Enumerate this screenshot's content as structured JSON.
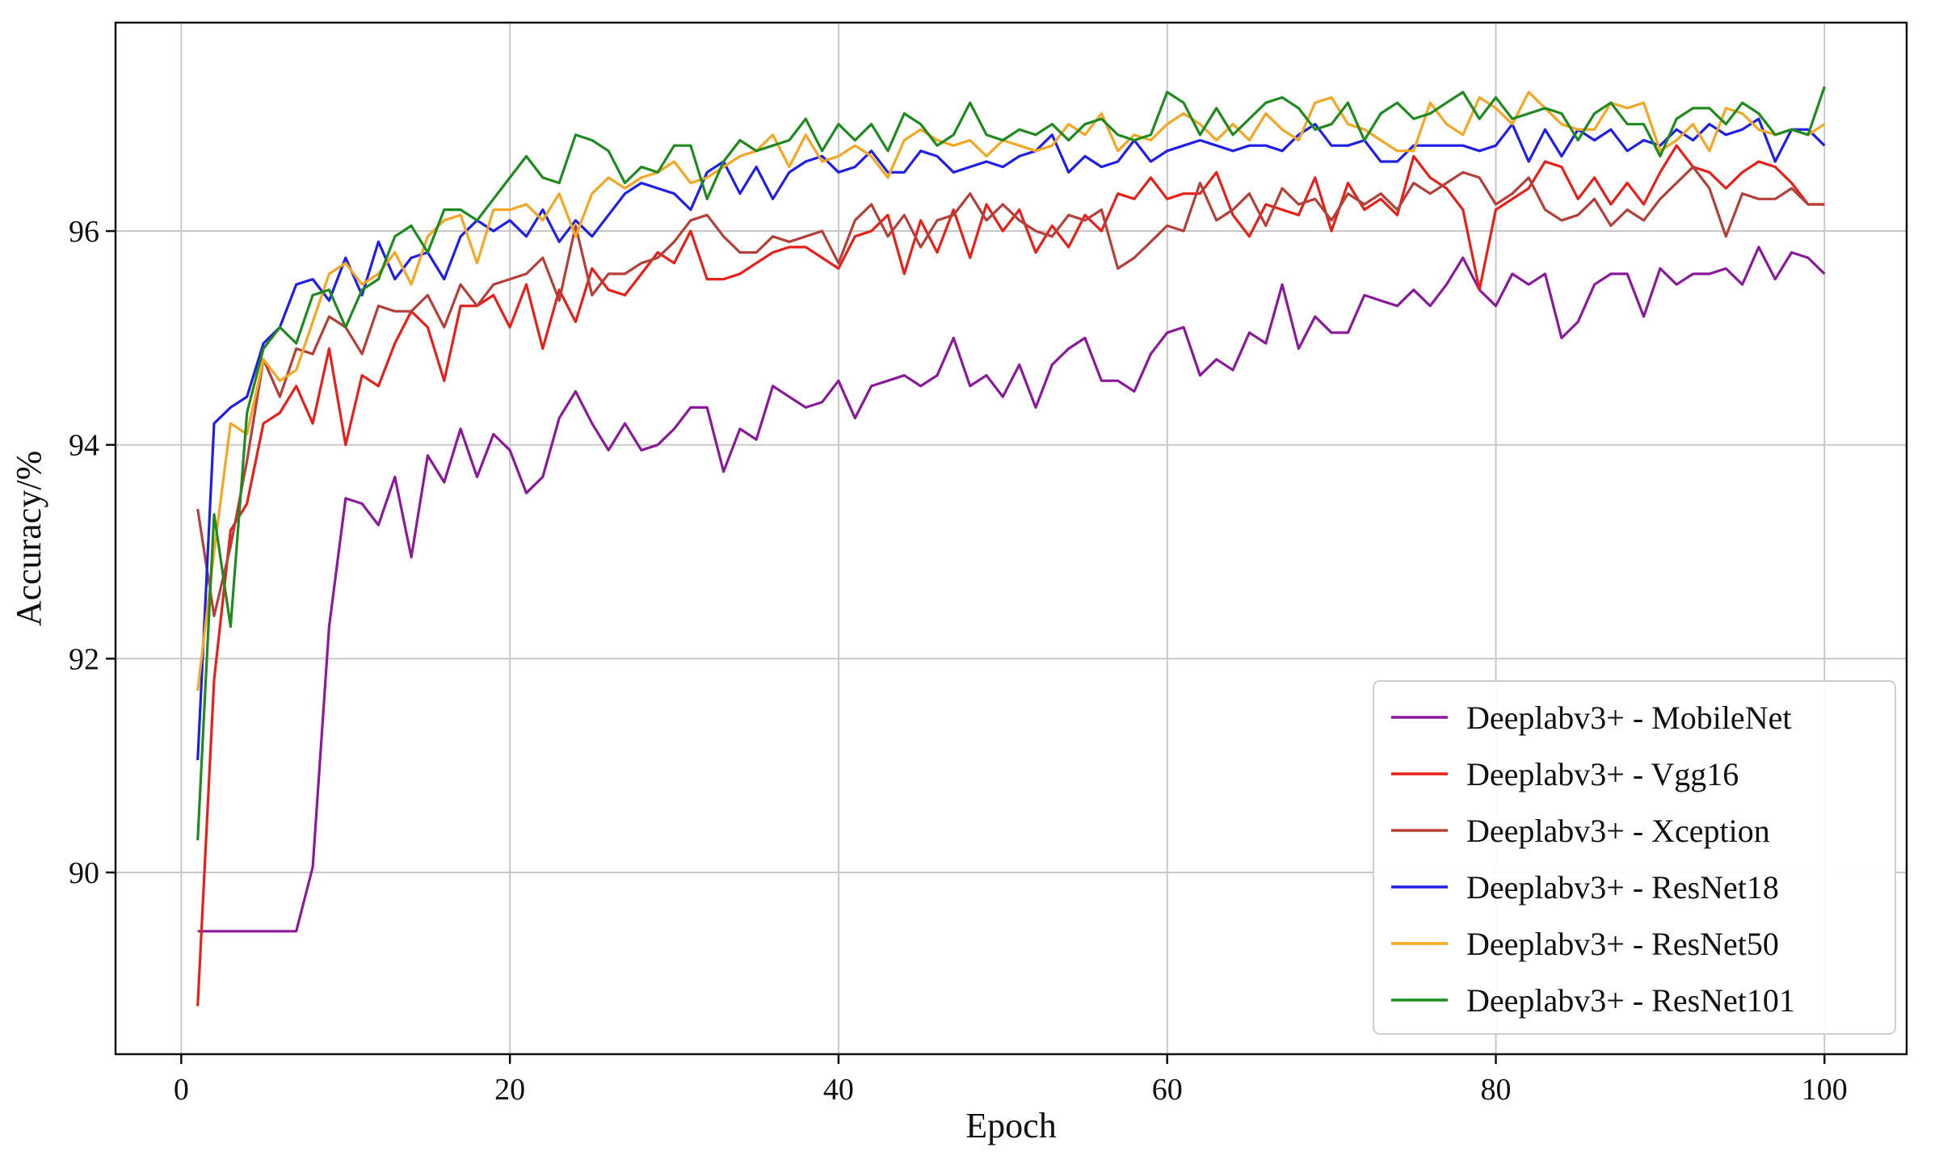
{
  "chart_data": {
    "type": "line",
    "title": "",
    "xlabel": "Epoch",
    "ylabel": "Accuracy/%",
    "xlim": [
      -4,
      105
    ],
    "ylim": [
      88.3,
      97.95
    ],
    "xticks": [
      0,
      20,
      40,
      60,
      80,
      100
    ],
    "yticks": [
      90,
      92,
      94,
      96
    ],
    "grid": true,
    "legend_position": "lower-right",
    "x": [
      1,
      2,
      3,
      4,
      5,
      6,
      7,
      8,
      9,
      10,
      11,
      12,
      13,
      14,
      15,
      16,
      17,
      18,
      19,
      20,
      21,
      22,
      23,
      24,
      25,
      26,
      27,
      28,
      29,
      30,
      31,
      32,
      33,
      34,
      35,
      36,
      37,
      38,
      39,
      40,
      41,
      42,
      43,
      44,
      45,
      46,
      47,
      48,
      49,
      50,
      51,
      52,
      53,
      54,
      55,
      56,
      57,
      58,
      59,
      60,
      61,
      62,
      63,
      64,
      65,
      66,
      67,
      68,
      69,
      70,
      71,
      72,
      73,
      74,
      75,
      76,
      77,
      78,
      79,
      80,
      81,
      82,
      83,
      84,
      85,
      86,
      87,
      88,
      89,
      90,
      91,
      92,
      93,
      94,
      95,
      96,
      97,
      98,
      99,
      100
    ],
    "series": [
      {
        "name": "Deeplabv3+ - MobileNet",
        "color": "#8b1a9b",
        "values": [
          89.45,
          89.45,
          89.45,
          89.45,
          89.45,
          89.45,
          89.45,
          90.05,
          92.3,
          93.5,
          93.45,
          93.25,
          93.7,
          92.95,
          93.9,
          93.65,
          94.15,
          93.7,
          94.1,
          93.95,
          93.55,
          93.7,
          94.25,
          94.5,
          94.2,
          93.95,
          94.2,
          93.95,
          94.0,
          94.15,
          94.35,
          94.35,
          93.75,
          94.15,
          94.05,
          94.55,
          94.45,
          94.35,
          94.4,
          94.6,
          94.25,
          94.55,
          94.6,
          94.65,
          94.55,
          94.65,
          95.0,
          94.55,
          94.65,
          94.45,
          94.75,
          94.35,
          94.75,
          94.9,
          95.0,
          94.6,
          94.6,
          94.5,
          94.85,
          95.05,
          95.1,
          94.65,
          94.8,
          94.7,
          95.05,
          94.95,
          95.5,
          94.9,
          95.2,
          95.05,
          95.05,
          95.4,
          95.35,
          95.3,
          95.45,
          95.3,
          95.5,
          95.75,
          95.45,
          95.3,
          95.6,
          95.5,
          95.6,
          95.0,
          95.15,
          95.5,
          95.6,
          95.6,
          95.2,
          95.65,
          95.5,
          95.6,
          95.6,
          95.65,
          95.5,
          95.85,
          95.55,
          95.8,
          95.75,
          95.6
        ]
      },
      {
        "name": "Deeplabv3+ - Vgg16",
        "color": "#e8201a",
        "values": [
          88.75,
          91.8,
          93.2,
          93.45,
          94.2,
          94.3,
          94.55,
          94.2,
          94.9,
          94.0,
          94.65,
          94.55,
          94.95,
          95.25,
          95.1,
          94.6,
          95.3,
          95.3,
          95.4,
          95.1,
          95.5,
          94.9,
          95.45,
          95.15,
          95.65,
          95.45,
          95.4,
          95.6,
          95.8,
          95.7,
          96.0,
          95.55,
          95.55,
          95.6,
          95.7,
          95.8,
          95.85,
          95.85,
          95.75,
          95.65,
          95.95,
          96.0,
          96.15,
          95.6,
          96.1,
          95.8,
          96.2,
          95.75,
          96.25,
          96.0,
          96.2,
          95.8,
          96.05,
          95.85,
          96.15,
          96.0,
          96.35,
          96.3,
          96.5,
          96.3,
          96.35,
          96.35,
          96.55,
          96.15,
          95.95,
          96.25,
          96.2,
          96.15,
          96.5,
          96.0,
          96.45,
          96.2,
          96.3,
          96.15,
          96.7,
          96.5,
          96.4,
          96.2,
          95.45,
          96.2,
          96.3,
          96.4,
          96.65,
          96.6,
          96.3,
          96.5,
          96.25,
          96.45,
          96.25,
          96.55,
          96.8,
          96.6,
          96.55,
          96.4,
          96.55,
          96.65,
          96.6,
          96.45,
          96.25,
          96.25
        ]
      },
      {
        "name": "Deeplabv3+ - Xception",
        "color": "#b5403a",
        "values": [
          93.4,
          92.4,
          93.05,
          93.85,
          94.8,
          94.45,
          94.9,
          94.85,
          95.2,
          95.1,
          94.85,
          95.3,
          95.25,
          95.25,
          95.4,
          95.1,
          95.5,
          95.3,
          95.5,
          95.55,
          95.6,
          95.75,
          95.35,
          96.05,
          95.4,
          95.6,
          95.6,
          95.7,
          95.75,
          95.9,
          96.1,
          96.15,
          95.95,
          95.8,
          95.8,
          95.95,
          95.9,
          95.95,
          96.0,
          95.7,
          96.1,
          96.25,
          95.95,
          96.15,
          95.85,
          96.1,
          96.15,
          96.35,
          96.1,
          96.25,
          96.1,
          96.0,
          95.95,
          96.15,
          96.1,
          96.2,
          95.65,
          95.75,
          95.9,
          96.05,
          96.0,
          96.45,
          96.1,
          96.2,
          96.35,
          96.05,
          96.4,
          96.25,
          96.3,
          96.1,
          96.35,
          96.25,
          96.35,
          96.2,
          96.45,
          96.35,
          96.45,
          96.55,
          96.5,
          96.25,
          96.35,
          96.5,
          96.2,
          96.1,
          96.15,
          96.3,
          96.05,
          96.2,
          96.1,
          96.3,
          96.45,
          96.6,
          96.4,
          95.95,
          96.35,
          96.3,
          96.3,
          96.4,
          96.25,
          96.25
        ]
      },
      {
        "name": "Deeplabv3+ - ResNet18",
        "color": "#1f1fe8",
        "values": [
          91.05,
          94.2,
          94.35,
          94.45,
          94.95,
          95.1,
          95.5,
          95.55,
          95.35,
          95.75,
          95.4,
          95.9,
          95.55,
          95.75,
          95.8,
          95.55,
          95.95,
          96.1,
          96.0,
          96.1,
          95.95,
          96.2,
          95.9,
          96.1,
          95.95,
          96.15,
          96.35,
          96.45,
          96.4,
          96.35,
          96.2,
          96.55,
          96.65,
          96.35,
          96.6,
          96.3,
          96.55,
          96.65,
          96.7,
          96.55,
          96.6,
          96.75,
          96.55,
          96.55,
          96.75,
          96.7,
          96.55,
          96.6,
          96.65,
          96.6,
          96.7,
          96.75,
          96.9,
          96.55,
          96.7,
          96.6,
          96.65,
          96.85,
          96.65,
          96.75,
          96.8,
          96.85,
          96.8,
          96.75,
          96.8,
          96.8,
          96.75,
          96.9,
          97.0,
          96.8,
          96.8,
          96.85,
          96.65,
          96.65,
          96.8,
          96.8,
          96.8,
          96.8,
          96.75,
          96.8,
          97.0,
          96.65,
          96.95,
          96.7,
          96.95,
          96.85,
          96.95,
          96.75,
          96.85,
          96.8,
          96.95,
          96.85,
          97.0,
          96.9,
          96.95,
          97.05,
          96.65,
          96.95,
          96.95,
          96.8
        ]
      },
      {
        "name": "Deeplabv3+ - ResNet50",
        "color": "#f5a623",
        "values": [
          91.7,
          93.0,
          94.2,
          94.1,
          94.8,
          94.6,
          94.7,
          95.15,
          95.6,
          95.7,
          95.5,
          95.6,
          95.8,
          95.5,
          95.95,
          96.1,
          96.15,
          95.7,
          96.2,
          96.2,
          96.25,
          96.1,
          96.35,
          95.95,
          96.35,
          96.5,
          96.4,
          96.5,
          96.55,
          96.65,
          96.45,
          96.5,
          96.6,
          96.7,
          96.75,
          96.9,
          96.6,
          96.9,
          96.65,
          96.7,
          96.8,
          96.7,
          96.5,
          96.85,
          96.95,
          96.85,
          96.8,
          96.85,
          96.7,
          96.85,
          96.8,
          96.75,
          96.8,
          97.0,
          96.9,
          97.1,
          96.75,
          96.9,
          96.85,
          97.0,
          97.1,
          97.0,
          96.85,
          97.0,
          96.85,
          97.1,
          96.95,
          96.85,
          97.2,
          97.25,
          97.0,
          96.95,
          96.85,
          96.75,
          96.75,
          97.2,
          97.0,
          96.9,
          97.25,
          97.15,
          97.0,
          97.3,
          97.15,
          97.0,
          96.95,
          96.95,
          97.2,
          97.15,
          97.2,
          96.75,
          96.85,
          97.0,
          96.75,
          97.15,
          97.1,
          96.95,
          96.9,
          96.95,
          96.9,
          97.0
        ]
      },
      {
        "name": "Deeplabv3+ - ResNet101",
        "color": "#1f8a1f",
        "values": [
          90.3,
          93.35,
          92.3,
          94.3,
          94.9,
          95.1,
          94.95,
          95.4,
          95.45,
          95.1,
          95.45,
          95.55,
          95.95,
          96.05,
          95.8,
          96.2,
          96.2,
          96.1,
          96.3,
          96.5,
          96.7,
          96.5,
          96.45,
          96.9,
          96.85,
          96.75,
          96.45,
          96.6,
          96.55,
          96.8,
          96.8,
          96.3,
          96.65,
          96.85,
          96.75,
          96.8,
          96.85,
          97.05,
          96.75,
          97.0,
          96.85,
          97.0,
          96.75,
          97.1,
          97.0,
          96.8,
          96.9,
          97.2,
          96.9,
          96.85,
          96.95,
          96.9,
          97.0,
          96.85,
          97.0,
          97.05,
          96.9,
          96.85,
          96.9,
          97.3,
          97.2,
          96.9,
          97.15,
          96.9,
          97.05,
          97.2,
          97.25,
          97.15,
          96.95,
          97.0,
          97.2,
          96.85,
          97.1,
          97.2,
          97.05,
          97.1,
          97.2,
          97.3,
          97.05,
          97.25,
          97.05,
          97.1,
          97.15,
          97.1,
          96.85,
          97.1,
          97.2,
          97.0,
          97.0,
          96.7,
          97.05,
          97.15,
          97.15,
          97.0,
          97.2,
          97.1,
          96.9,
          96.95,
          96.9,
          97.35
        ]
      }
    ]
  }
}
